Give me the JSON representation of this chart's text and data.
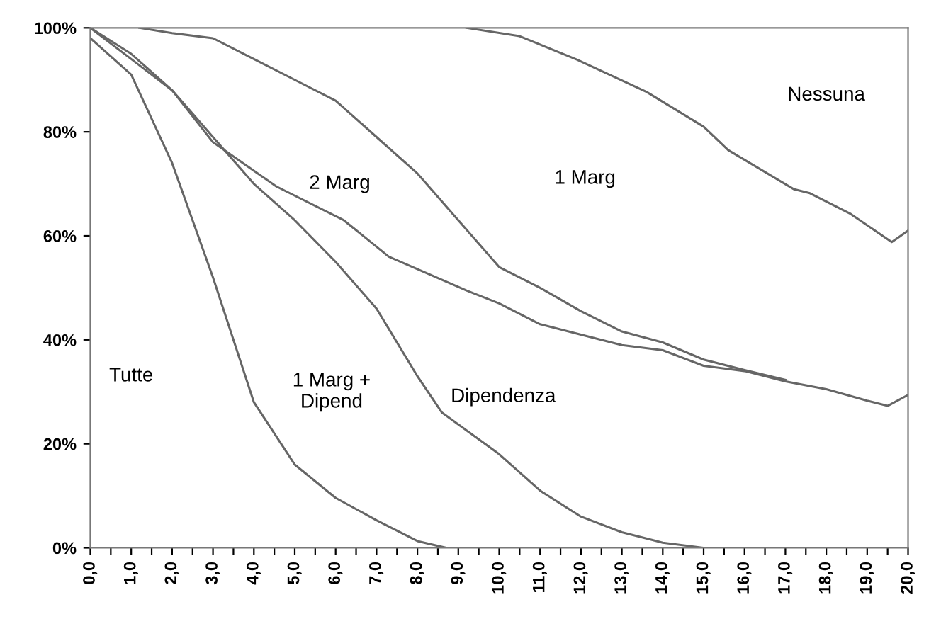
{
  "chart_data": {
    "type": "line",
    "marker": "none",
    "line_style": "solid",
    "grid": false,
    "legend": false,
    "xlim": [
      0,
      20
    ],
    "ylim": [
      0,
      100
    ],
    "xticks": [
      {
        "value": 0,
        "label": "0,0"
      },
      {
        "value": 0.5,
        "label": null
      },
      {
        "value": 1,
        "label": "1,0"
      },
      {
        "value": 1.5,
        "label": null
      },
      {
        "value": 2,
        "label": "2,0"
      },
      {
        "value": 2.5,
        "label": null
      },
      {
        "value": 3,
        "label": "3,0"
      },
      {
        "value": 3.5,
        "label": null
      },
      {
        "value": 4,
        "label": "4,0"
      },
      {
        "value": 4.5,
        "label": null
      },
      {
        "value": 5,
        "label": "5,0"
      },
      {
        "value": 5.5,
        "label": null
      },
      {
        "value": 6,
        "label": "6,0"
      },
      {
        "value": 6.5,
        "label": null
      },
      {
        "value": 7,
        "label": "7,0"
      },
      {
        "value": 7.5,
        "label": null
      },
      {
        "value": 8,
        "label": "8,0"
      },
      {
        "value": 8.5,
        "label": null
      },
      {
        "value": 9,
        "label": "9,0"
      },
      {
        "value": 9.5,
        "label": null
      },
      {
        "value": 10,
        "label": "10,0"
      },
      {
        "value": 10.5,
        "label": null
      },
      {
        "value": 11,
        "label": "11,0"
      },
      {
        "value": 11.5,
        "label": null
      },
      {
        "value": 12,
        "label": "12,0"
      },
      {
        "value": 12.5,
        "label": null
      },
      {
        "value": 13,
        "label": "13,0"
      },
      {
        "value": 13.5,
        "label": null
      },
      {
        "value": 14,
        "label": "14,0"
      },
      {
        "value": 14.5,
        "label": null
      },
      {
        "value": 15,
        "label": "15,0"
      },
      {
        "value": 15.5,
        "label": null
      },
      {
        "value": 16,
        "label": "16,0"
      },
      {
        "value": 16.5,
        "label": null
      },
      {
        "value": 17,
        "label": "17,0"
      },
      {
        "value": 17.5,
        "label": null
      },
      {
        "value": 18,
        "label": "18,0"
      },
      {
        "value": 18.5,
        "label": null
      },
      {
        "value": 19,
        "label": "19,0"
      },
      {
        "value": 19.5,
        "label": null
      },
      {
        "value": 20,
        "label": "20,0"
      }
    ],
    "yticks": [
      {
        "value": 0,
        "label": "0%"
      },
      {
        "value": 20,
        "label": "20%"
      },
      {
        "value": 40,
        "label": "40%"
      },
      {
        "value": 60,
        "label": "60%"
      },
      {
        "value": 80,
        "label": "80%"
      },
      {
        "value": 100,
        "label": "100%"
      }
    ],
    "series": [
      {
        "color": "#666666",
        "x": [
          0,
          1,
          2,
          3,
          4,
          5,
          6,
          7,
          8,
          8.7
        ],
        "values": [
          98,
          91,
          74,
          52,
          28,
          16,
          9.6,
          5.3,
          1.3,
          0
        ]
      },
      {
        "color": "#666666",
        "x": [
          0,
          1,
          2,
          3,
          4,
          5,
          6,
          7,
          8,
          8.6,
          10,
          11,
          12,
          13,
          14,
          15
        ],
        "values": [
          100,
          94,
          88,
          79,
          70,
          63,
          55,
          46,
          33,
          26,
          18,
          11,
          6,
          3,
          1,
          0
        ]
      },
      {
        "color": "#666666",
        "x": [
          0,
          1,
          2,
          3,
          4.55,
          6.2,
          7.3,
          9.2,
          10,
          11,
          12,
          13,
          14,
          15,
          16,
          17,
          18,
          19,
          19.5,
          20
        ],
        "values": [
          100,
          95,
          88,
          78,
          69.5,
          63,
          56,
          49.5,
          47,
          43,
          41,
          39,
          38,
          35,
          34,
          32,
          30.5,
          28.3,
          27.3,
          29.4
        ]
      },
      {
        "color": "#666666",
        "x": [
          1.2,
          2,
          3,
          4,
          5,
          6,
          7,
          8,
          9,
          10,
          11,
          12,
          13,
          14,
          15,
          16,
          17
        ],
        "values": [
          100,
          99,
          98,
          94,
          90,
          86,
          79,
          72,
          63,
          54,
          50,
          45.5,
          41.6,
          39.5,
          36.2,
          34.2,
          32.3
        ]
      },
      {
        "color": "#666666",
        "x": [
          9.2,
          10.5,
          11.9,
          13.6,
          15,
          15.6,
          17.2,
          17.6,
          18.6,
          19.6,
          20
        ],
        "values": [
          100,
          98.4,
          93.9,
          87.7,
          81,
          76.5,
          69,
          68.2,
          64.2,
          58.8,
          61
        ]
      }
    ],
    "annotations": [
      "Tutte",
      "1 Marg +\nDipend",
      "Dipendenza",
      "2 Marg",
      "1 Marg",
      "Nessuna"
    ]
  }
}
